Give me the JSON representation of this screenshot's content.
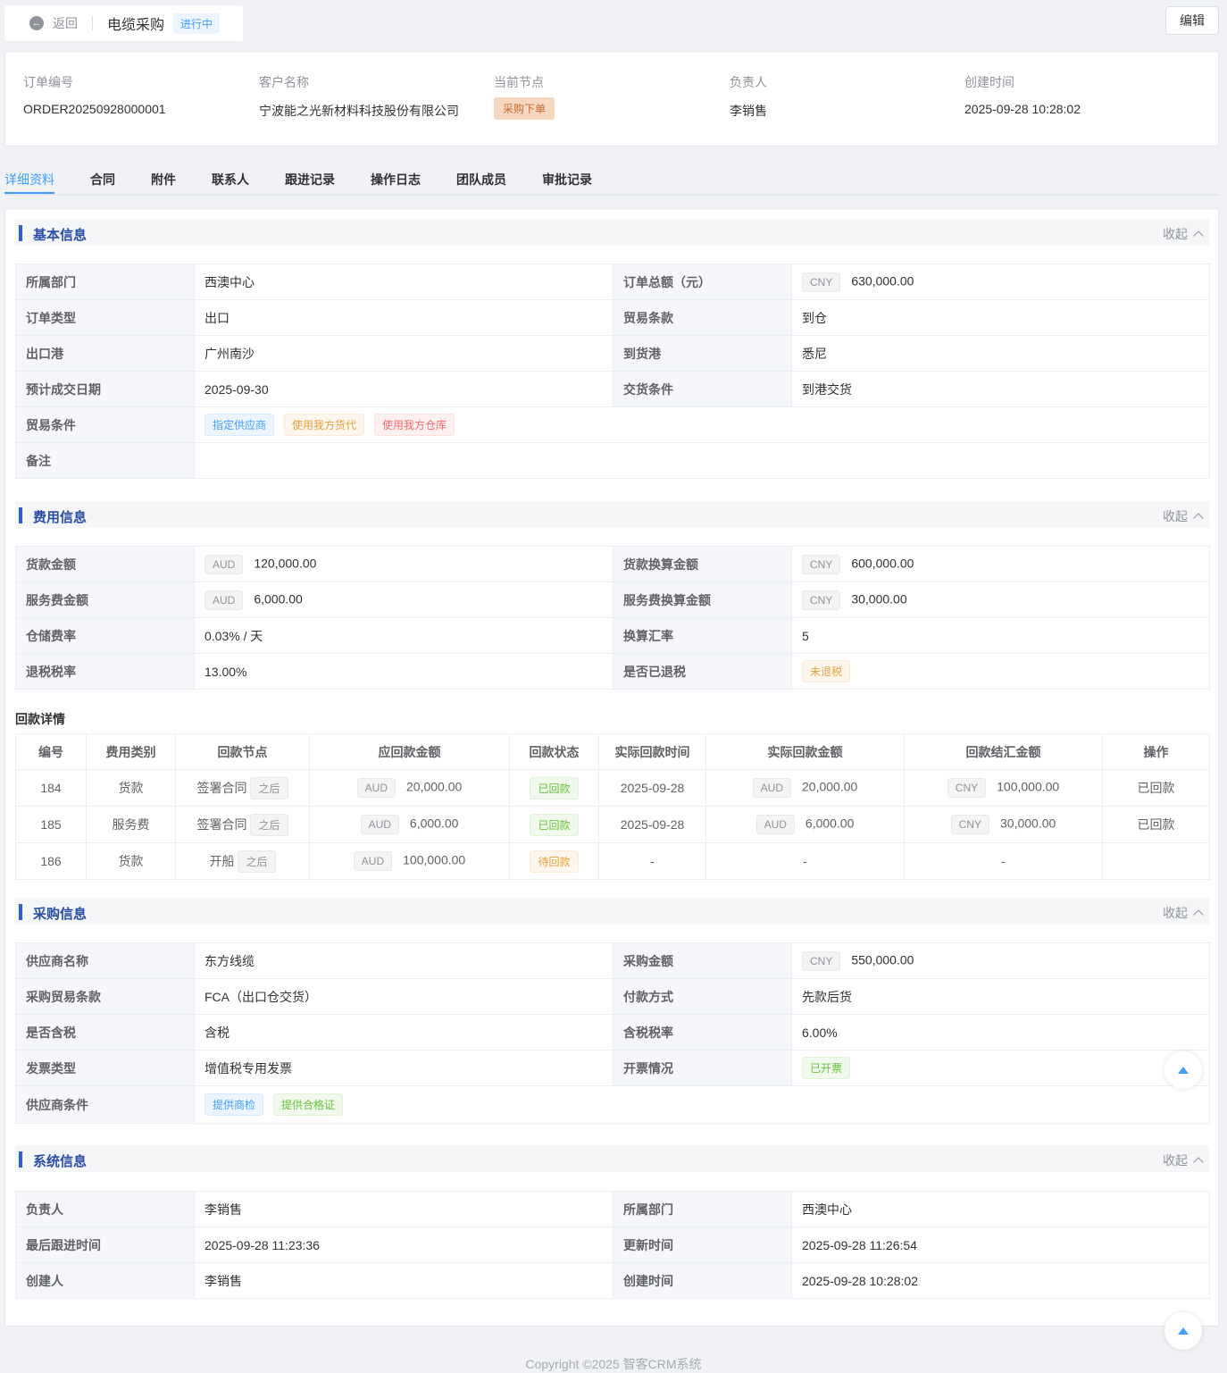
{
  "header": {
    "back_label": "返回",
    "title": "电缆采购",
    "status": "进行中",
    "edit_label": "编辑"
  },
  "summary": {
    "order_no_label": "订单编号",
    "order_no": "ORDER20250928000001",
    "customer_label": "客户名称",
    "customer": "宁波能之光新材料科技股份有限公司",
    "node_label": "当前节点",
    "node": "采购下单",
    "owner_label": "负责人",
    "owner": "李销售",
    "created_label": "创建时间",
    "created": "2025-09-28 10:28:02"
  },
  "tabs": [
    "详细资料",
    "合同",
    "附件",
    "联系人",
    "跟进记录",
    "操作日志",
    "团队成员",
    "审批记录"
  ],
  "collapse_label": "收起",
  "basic": {
    "title": "基本信息",
    "dept_label": "所属部门",
    "dept": "西澳中心",
    "total_label": "订单总额（元）",
    "total_cur": "CNY",
    "total": "630,000.00",
    "type_label": "订单类型",
    "type": "出口",
    "trade_term_label": "贸易条款",
    "trade_term": "到仓",
    "port_out_label": "出口港",
    "port_out": "广州南沙",
    "port_in_label": "到货港",
    "port_in": "悉尼",
    "deal_date_label": "预计成交日期",
    "deal_date": "2025-09-30",
    "delivery_label": "交货条件",
    "delivery": "到港交货",
    "cond_label": "贸易条件",
    "cond_tags": [
      "指定供应商",
      "使用我方货代",
      "使用我方仓库"
    ],
    "remark_label": "备注",
    "remark": ""
  },
  "fee": {
    "title": "费用信息",
    "goods_label": "货款金额",
    "goods_cur": "AUD",
    "goods": "120,000.00",
    "goods_conv_label": "货款换算金额",
    "goods_conv_cur": "CNY",
    "goods_conv": "600,000.00",
    "service_label": "服务费金额",
    "service_cur": "AUD",
    "service": "6,000.00",
    "service_conv_label": "服务费换算金额",
    "service_conv_cur": "CNY",
    "service_conv": "30,000.00",
    "storage_label": "仓储费率",
    "storage": "0.03% / 天",
    "rate_label": "换算汇率",
    "rate": "5",
    "refund_rate_label": "退税税率",
    "refund_rate": "13.00%",
    "refunded_label": "是否已退税",
    "refunded": "未退税"
  },
  "payments": {
    "title": "回款详情",
    "headers": [
      "编号",
      "费用类别",
      "回款节点",
      "应回款金额",
      "回款状态",
      "实际回款时间",
      "实际回款金额",
      "回款结汇金额",
      "操作"
    ],
    "after_label": "之后",
    "rows": [
      {
        "id": "184",
        "category": "货款",
        "node": "签署合同",
        "due_cur": "AUD",
        "due": "20,000.00",
        "status": "已回款",
        "paid_time": "2025-09-28",
        "paid_cur": "AUD",
        "paid": "20,000.00",
        "settle_cur": "CNY",
        "settle": "100,000.00",
        "action": "已回款"
      },
      {
        "id": "185",
        "category": "服务费",
        "node": "签署合同",
        "due_cur": "AUD",
        "due": "6,000.00",
        "status": "已回款",
        "paid_time": "2025-09-28",
        "paid_cur": "AUD",
        "paid": "6,000.00",
        "settle_cur": "CNY",
        "settle": "30,000.00",
        "action": "已回款"
      },
      {
        "id": "186",
        "category": "货款",
        "node": "开船",
        "due_cur": "AUD",
        "due": "100,000.00",
        "status": "待回款",
        "paid_time": "-",
        "paid": "-",
        "settle": "-",
        "action": ""
      }
    ]
  },
  "purchase": {
    "title": "采购信息",
    "supplier_label": "供应商名称",
    "supplier": "东方线缆",
    "amount_label": "采购金额",
    "amount_cur": "CNY",
    "amount": "550,000.00",
    "term_label": "采购贸易条款",
    "term": "FCA（出口仓交货）",
    "pay_method_label": "付款方式",
    "pay_method": "先款后货",
    "tax_label": "是否含税",
    "tax": "含税",
    "tax_rate_label": "含税税率",
    "tax_rate": "6.00%",
    "invoice_type_label": "发票类型",
    "invoice_type": "增值税专用发票",
    "invoice_status_label": "开票情况",
    "invoice_status": "已开票",
    "supplier_cond_label": "供应商条件",
    "supplier_cond_tags": [
      "提供商检",
      "提供合格证"
    ]
  },
  "system": {
    "title": "系统信息",
    "owner_label": "负责人",
    "owner": "李销售",
    "dept_label": "所属部门",
    "dept": "西澳中心",
    "last_follow_label": "最后跟进时间",
    "last_follow": "2025-09-28 11:23:36",
    "updated_label": "更新时间",
    "updated": "2025-09-28 11:26:54",
    "creator_label": "创建人",
    "creator": "李销售",
    "created_label": "创建时间",
    "created": "2025-09-28 10:28:02"
  },
  "footer": "Copyright ©2025 智客CRM系统"
}
